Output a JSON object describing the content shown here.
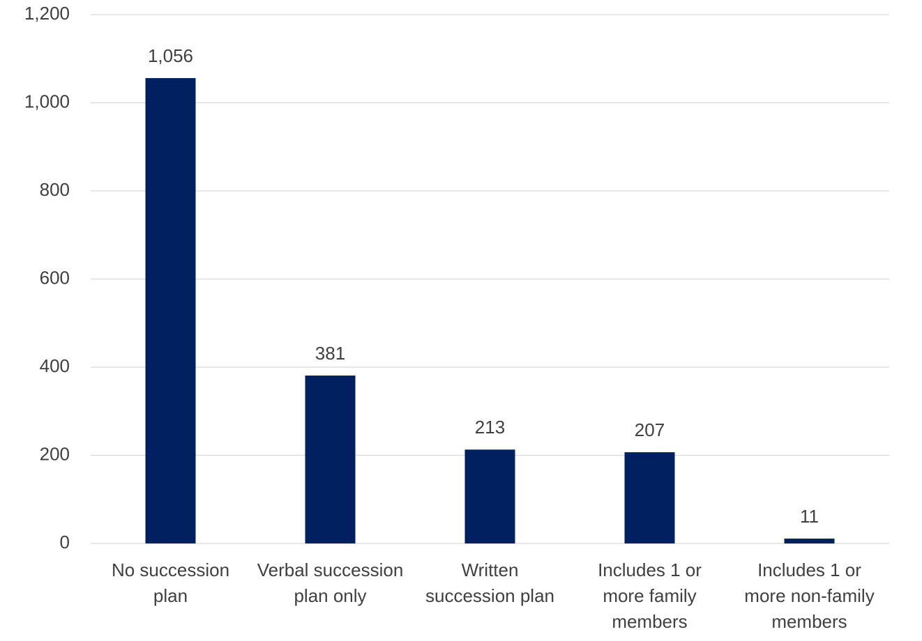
{
  "chart_data": {
    "type": "bar",
    "categories": [
      "No succession plan",
      "Verbal succession plan only",
      "Written succession plan",
      "Includes 1 or more family members",
      "Includes 1 or more non-family members"
    ],
    "values": [
      1056,
      381,
      213,
      207,
      11
    ],
    "value_labels": [
      "1,056",
      "381",
      "213",
      "207",
      "11"
    ],
    "color": "#002060",
    "ylim": [
      0,
      1200
    ],
    "yticks": [
      0,
      200,
      400,
      600,
      800,
      {
        "value": 1000,
        "label": "1,000"
      },
      {
        "value": 1200,
        "label": "1,200"
      }
    ],
    "grid": true
  }
}
